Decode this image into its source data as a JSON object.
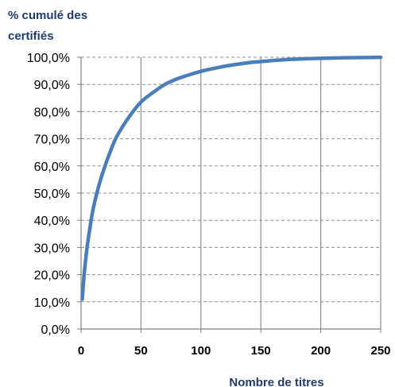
{
  "chart_data": {
    "type": "line",
    "ylabel_lines": [
      "% cumulé des",
      "certifiés"
    ],
    "xlabel": "Nombre de titres",
    "xlim": [
      0,
      250
    ],
    "ylim": [
      0,
      100
    ],
    "x_ticks": [
      0,
      50,
      100,
      150,
      200,
      250
    ],
    "x_tick_labels": [
      "0",
      "50",
      "100",
      "150",
      "200",
      "250"
    ],
    "y_ticks": [
      0,
      10,
      20,
      30,
      40,
      50,
      60,
      70,
      80,
      90,
      100
    ],
    "y_tick_labels": [
      "0,0%",
      "10,0%",
      "20,0%",
      "30,0%",
      "40,0%",
      "50,0%",
      "60,0%",
      "70,0%",
      "80,0%",
      "90,0%",
      "100,0%"
    ],
    "grid": {
      "vertical": "solid",
      "horizontal": "dashed"
    },
    "series": [
      {
        "color": "#4a7ebb",
        "x": [
          1,
          2,
          3,
          5,
          7,
          10,
          15,
          20,
          25,
          30,
          40,
          50,
          60,
          70,
          80,
          90,
          100,
          110,
          120,
          130,
          140,
          150,
          160,
          170,
          180,
          190,
          200,
          210,
          220,
          230,
          240,
          250
        ],
        "y": [
          11,
          17,
          22,
          30,
          36,
          44,
          53,
          60,
          66,
          71,
          78,
          83.5,
          87,
          90,
          92,
          93.5,
          94.8,
          95.8,
          96.7,
          97.4,
          98,
          98.4,
          98.8,
          99.1,
          99.3,
          99.5,
          99.6,
          99.7,
          99.8,
          99.85,
          99.9,
          99.95
        ]
      }
    ]
  }
}
